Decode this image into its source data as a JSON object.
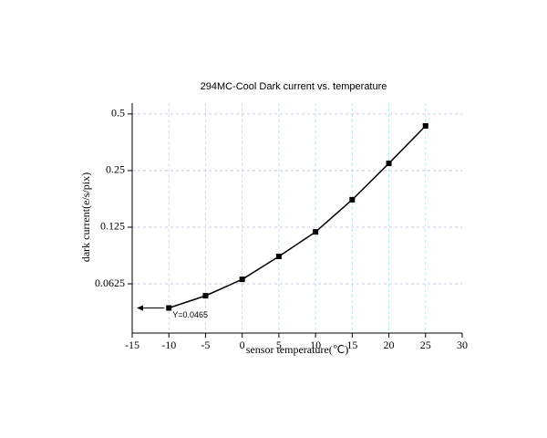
{
  "chart_data": {
    "type": "line",
    "title": "294MC-Cool Dark current vs. temperature",
    "x_label": "sensor temperature(℃)",
    "y_label": "dark current(e/s/pix)",
    "x": [
      -10,
      -5,
      0,
      5,
      10,
      15,
      20,
      25
    ],
    "series": [
      {
        "color": "#000000",
        "values": [
          0.0465,
          0.054,
          0.066,
          0.0874,
          0.118,
          0.175,
          0.273,
          0.432
        ]
      }
    ],
    "xlim": [
      -15,
      30
    ],
    "xticks": [
      -15,
      -10,
      -5,
      0,
      5,
      10,
      15,
      20,
      25,
      30
    ],
    "ylim": [
      0.0342,
      0.571
    ],
    "yticks": [
      0.0625,
      0.125,
      0.25,
      0.5
    ],
    "yscale": "log",
    "grid": true,
    "annotation": "Y=0.0465"
  }
}
